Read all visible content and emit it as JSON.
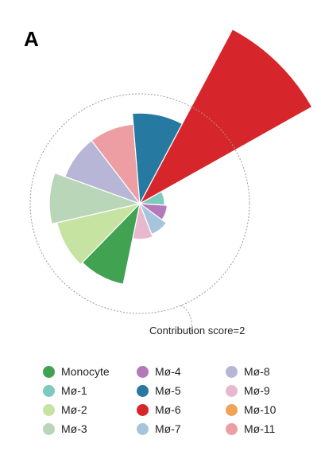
{
  "panel_label": "A",
  "chart_data": {
    "type": "polar-area",
    "title": "",
    "reference_label": "Contribution score=2",
    "reference_value": 2,
    "categories": [
      "Mø-6",
      "Mø-1",
      "Mø-4",
      "Mø-7",
      "Mø-9",
      "Monocyte",
      "Mø-2",
      "Mø-3",
      "Mø-8",
      "Mø-11",
      "Mø-5"
    ],
    "values": [
      3.6,
      0.45,
      0.5,
      0.6,
      0.65,
      1.5,
      1.55,
      1.65,
      1.45,
      1.45,
      1.65
    ],
    "colors": [
      "#d7262b",
      "#7ecbbd",
      "#b479b8",
      "#a6c4dc",
      "#e8b9ce",
      "#41a351",
      "#c6e3a2",
      "#b9d7b8",
      "#b8b6d6",
      "#ec9ea3",
      "#2679a0"
    ],
    "legend": [
      {
        "label": "Monocyte",
        "color": "#41a351"
      },
      {
        "label": "Mø-4",
        "color": "#b479b8"
      },
      {
        "label": "Mø-8",
        "color": "#b8b6d6"
      },
      {
        "label": "Mø-1",
        "color": "#7ecbbd"
      },
      {
        "label": "Mø-5",
        "color": "#2679a0"
      },
      {
        "label": "Mø-9",
        "color": "#e8b9ce"
      },
      {
        "label": "Mø-2",
        "color": "#c6e3a2"
      },
      {
        "label": "Mø-6",
        "color": "#d7262b"
      },
      {
        "label": "Mø-10",
        "color": "#f0a257"
      },
      {
        "label": "Mø-3",
        "color": "#b9d7b8"
      },
      {
        "label": "Mø-7",
        "color": "#a6c4dc"
      },
      {
        "label": "Mø-11",
        "color": "#ec9ea3"
      }
    ]
  }
}
